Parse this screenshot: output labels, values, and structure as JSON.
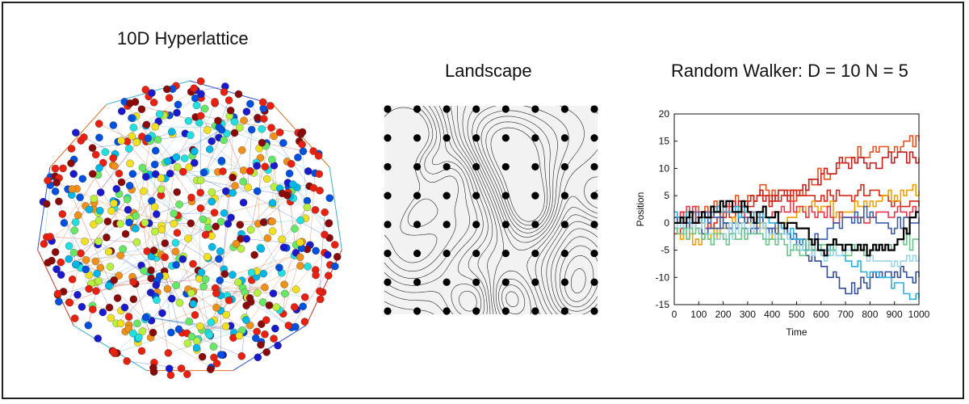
{
  "figure": {
    "panels": [
      {
        "title": "10D Hyperlattice"
      },
      {
        "title": "Landscape"
      },
      {
        "title": "Random Walker:  D = 10  N = 5"
      }
    ]
  },
  "colors": {
    "frame": "#222222",
    "node_palette": [
      "#1a1acc",
      "#0050e0",
      "#00b8e8",
      "#22e0e0",
      "#66e866",
      "#b8f040",
      "#f0e020",
      "#f09018",
      "#e82010",
      "#8a0a0a"
    ],
    "edge_palette": [
      "#3050d0",
      "#e07020",
      "#40b0d0",
      "#d03020"
    ],
    "lattice_dot": "#000000",
    "landscape_bg": "#f2f2f2",
    "contour": "#222222"
  },
  "lattice": {
    "rows": 8,
    "cols": 8
  },
  "chart_data": {
    "type": "line",
    "title": "Random Walker:  D = 10  N = 5",
    "xlabel": "Time",
    "ylabel": "Position",
    "xlim": [
      0,
      1000
    ],
    "ylim": [
      -15,
      20
    ],
    "xticks": [
      0,
      100,
      200,
      300,
      400,
      500,
      600,
      700,
      800,
      900,
      1000
    ],
    "yticks": [
      20,
      15,
      10,
      5,
      0,
      -5,
      -10,
      -15
    ],
    "step": true,
    "series": [
      {
        "color": "#e8501e",
        "x": [
          0,
          100,
          200,
          300,
          400,
          500,
          600,
          700,
          800,
          900,
          1000
        ],
        "y": [
          0,
          2,
          3,
          5,
          6,
          5,
          9,
          12,
          13,
          14,
          15
        ]
      },
      {
        "color": "#c81e1e",
        "x": [
          0,
          100,
          200,
          300,
          400,
          500,
          600,
          700,
          800,
          900,
          1000
        ],
        "y": [
          0,
          1,
          2,
          4,
          5,
          5,
          9,
          11,
          11,
          12,
          12
        ]
      },
      {
        "color": "#d82818",
        "x": [
          0,
          100,
          200,
          300,
          400,
          500,
          600,
          700,
          800,
          900,
          1000
        ],
        "y": [
          -2,
          0,
          1,
          3,
          4,
          6,
          5,
          5,
          6,
          4,
          3
        ]
      },
      {
        "color": "#f0a000",
        "x": [
          0,
          100,
          200,
          300,
          400,
          500,
          600,
          700,
          800,
          900,
          1000
        ],
        "y": [
          -1,
          -4,
          -1,
          0,
          -2,
          2,
          3,
          2,
          4,
          5,
          6
        ]
      },
      {
        "color": "#e83848",
        "x": [
          0,
          100,
          200,
          300,
          400,
          500,
          600,
          700,
          800,
          900,
          1000
        ],
        "y": [
          1,
          2,
          3,
          1,
          2,
          3,
          2,
          1,
          1,
          2,
          2
        ]
      },
      {
        "color": "#334d99",
        "x": [
          0,
          100,
          200,
          300,
          400,
          500,
          600,
          700,
          800,
          900,
          1000
        ],
        "y": [
          1,
          -1,
          0,
          1,
          -1,
          -3,
          -8,
          -13,
          -10,
          -9,
          -10
        ]
      },
      {
        "color": "#3b5fb0",
        "x": [
          0,
          100,
          200,
          300,
          400,
          500,
          600,
          700,
          800,
          900,
          1000
        ],
        "y": [
          0,
          1,
          0,
          -2,
          -1,
          -4,
          -3,
          1,
          2,
          -1,
          1
        ]
      },
      {
        "color": "#2ab0e0",
        "x": [
          0,
          100,
          200,
          300,
          400,
          500,
          600,
          700,
          800,
          900,
          1000
        ],
        "y": [
          2,
          1,
          3,
          2,
          0,
          -3,
          -5,
          -7,
          -9,
          -11,
          -14
        ]
      },
      {
        "color": "#9ad6e6",
        "x": [
          0,
          100,
          200,
          300,
          400,
          500,
          600,
          700,
          800,
          900,
          1000
        ],
        "y": [
          0,
          -1,
          -2,
          -1,
          -2,
          -4,
          -6,
          -5,
          -6,
          -7,
          -6
        ]
      },
      {
        "color": "#6cc48a",
        "x": [
          0,
          100,
          200,
          300,
          400,
          500,
          600,
          700,
          800,
          900,
          1000
        ],
        "y": [
          -1,
          -2,
          -3,
          -2,
          -3,
          -5,
          -4,
          -6,
          -5,
          -4,
          -3
        ]
      },
      {
        "color": "#000000",
        "x": [
          0,
          100,
          200,
          300,
          400,
          500,
          600,
          700,
          800,
          900,
          1000
        ],
        "y": [
          0,
          1,
          3,
          2,
          1,
          -1,
          -5,
          -4,
          -5,
          -4,
          2
        ]
      }
    ]
  }
}
